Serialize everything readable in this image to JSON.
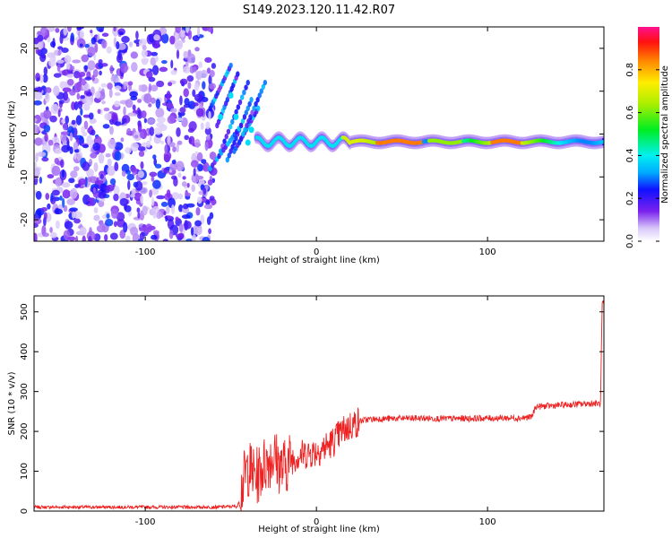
{
  "title": "S149.2023.120.11.42.R07",
  "colors": {
    "snr_line": "#ee2222",
    "axis": "#000000"
  },
  "chart_data": [
    {
      "type": "heatmap",
      "xlabel": "Height of straight line (km)",
      "ylabel": "Frequency (Hz)",
      "xlim": [
        -165,
        168
      ],
      "ylim": [
        -25,
        25
      ],
      "xticks": [
        -100,
        0,
        100
      ],
      "yticks": [
        20,
        10,
        0,
        -10,
        -20
      ],
      "colorbar": {
        "label": "Normalized spectral amplitude",
        "range": [
          0.0,
          1.0
        ],
        "ticks": [
          0.0,
          0.2,
          0.4,
          0.6,
          0.8
        ],
        "colormap": "rainbow-with-white-low"
      },
      "description_of_data": {
        "noise_region_x": [
          -165,
          -60
        ],
        "chirp_region_x": [
          -60,
          -35
        ],
        "stable_tone_x": [
          -35,
          168
        ],
        "stable_tone_freq_hz": -1.8,
        "stable_tone_peak_amplitude": 0.85
      }
    },
    {
      "type": "line",
      "xlabel": "Height of straight line (km)",
      "ylabel": "SNR (10 * v/v)",
      "xlim": [
        -165,
        168
      ],
      "ylim": [
        0,
        540
      ],
      "xticks": [
        -100,
        0,
        100
      ],
      "yticks": [
        0,
        100,
        200,
        300,
        400,
        500
      ],
      "series": [
        {
          "x": [
            -165,
            -140,
            -100,
            -60,
            -46,
            -43,
            -40,
            -35,
            -30,
            -25,
            -20,
            -15,
            -10,
            -5,
            0,
            5,
            10,
            15,
            20,
            25,
            30,
            40,
            60,
            80,
            100,
            120,
            126,
            128,
            140,
            160,
            166,
            167,
            168
          ],
          "y": [
            10,
            10,
            10,
            10,
            12,
            70,
            110,
            85,
            120,
            140,
            105,
            130,
            140,
            145,
            150,
            160,
            175,
            200,
            215,
            225,
            230,
            232,
            233,
            232,
            233,
            234,
            236,
            262,
            265,
            270,
            270,
            520,
            520
          ]
        }
      ]
    }
  ]
}
